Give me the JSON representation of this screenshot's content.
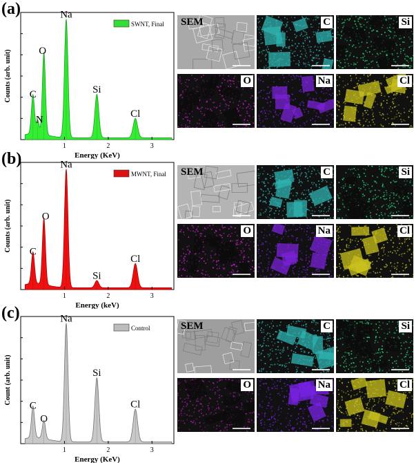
{
  "panels": [
    {
      "label": "(a)",
      "chart_data": {
        "type": "line",
        "legend": "SWNT, Final",
        "legend_color": "#33dd33",
        "fill": "#33ee33",
        "stroke": "#229922",
        "xlabel": "Energy (KeV)",
        "ylabel": "Counts (arb. unit)",
        "xlim": [
          0,
          3.5
        ],
        "ylim": [
          0,
          1.05
        ],
        "xticks": [
          "1",
          "2",
          "3"
        ],
        "peaks": [
          {
            "element": "C",
            "energy": 0.28,
            "height": 0.32,
            "width": 0.035
          },
          {
            "element": "N",
            "energy": 0.39,
            "height": 0.11,
            "width": 0.03
          },
          {
            "element": "O",
            "energy": 0.53,
            "height": 0.68,
            "width": 0.035
          },
          {
            "element": "Na",
            "energy": 1.04,
            "height": 0.98,
            "width": 0.04
          },
          {
            "element": "Si",
            "energy": 1.74,
            "height": 0.36,
            "width": 0.045
          },
          {
            "element": "Cl",
            "energy": 2.62,
            "height": 0.16,
            "width": 0.05
          }
        ],
        "labels": [
          {
            "text": "C",
            "energy": 0.28,
            "height": 0.32
          },
          {
            "text": "N",
            "energy": 0.43,
            "height": 0.11
          },
          {
            "text": "O",
            "energy": 0.5,
            "height": 0.68
          },
          {
            "text": "Na",
            "energy": 1.04,
            "height": 0.98
          },
          {
            "text": "Si",
            "energy": 1.74,
            "height": 0.36
          },
          {
            "text": "Cl",
            "energy": 2.62,
            "height": 0.16
          }
        ]
      },
      "maps": [
        {
          "label": "SEM",
          "color": "#a9a9a9"
        },
        {
          "label": "C",
          "color": "#2fb3b0"
        },
        {
          "label": "Si",
          "color": "#26d97a"
        },
        {
          "label": "O",
          "color": "#c41cc4"
        },
        {
          "label": "Na",
          "color": "#7a22d8"
        },
        {
          "label": "Cl",
          "color": "#c9c21e"
        }
      ]
    },
    {
      "label": "(b)",
      "chart_data": {
        "type": "line",
        "legend": "MWNT, Final",
        "legend_color": "#dd1111",
        "fill": "#ee1111",
        "stroke": "#aa0000",
        "xlabel": "Energy (keV)",
        "ylabel": "Counts (arb. unit)",
        "xlim": [
          0,
          3.5
        ],
        "ylim": [
          0,
          1.05
        ],
        "xticks": [
          "1",
          "2",
          "3"
        ],
        "peaks": [
          {
            "element": "C",
            "energy": 0.28,
            "height": 0.26,
            "width": 0.035
          },
          {
            "element": "O",
            "energy": 0.53,
            "height": 0.55,
            "width": 0.035
          },
          {
            "element": "Na",
            "energy": 1.04,
            "height": 0.98,
            "width": 0.04
          },
          {
            "element": "Si",
            "energy": 1.74,
            "height": 0.06,
            "width": 0.045
          },
          {
            "element": "Cl",
            "energy": 2.62,
            "height": 0.2,
            "width": 0.05
          }
        ],
        "labels": [
          {
            "text": "C",
            "energy": 0.28,
            "height": 0.26
          },
          {
            "text": "O",
            "energy": 0.57,
            "height": 0.55
          },
          {
            "text": "Na",
            "energy": 1.04,
            "height": 0.98
          },
          {
            "text": "Si",
            "energy": 1.74,
            "height": 0.06
          },
          {
            "text": "Cl",
            "energy": 2.62,
            "height": 0.2
          }
        ]
      },
      "maps": [
        {
          "label": "SEM",
          "color": "#b4b4b4"
        },
        {
          "label": "C",
          "color": "#2fb3b0"
        },
        {
          "label": "Si",
          "color": "#26d97a"
        },
        {
          "label": "O",
          "color": "#d11fd1"
        },
        {
          "label": "Na",
          "color": "#7a22d8"
        },
        {
          "label": "Cl",
          "color": "#c9c21e"
        }
      ]
    },
    {
      "label": "(c)",
      "chart_data": {
        "type": "line",
        "legend": "Control",
        "legend_color": "#bdbdbd",
        "fill": "#c8c8c8",
        "stroke": "#707070",
        "xlabel": "Energy (KeV)",
        "ylabel": "Count (arb. unit)",
        "xlim": [
          0,
          3.5
        ],
        "ylim": [
          0,
          1.05
        ],
        "xticks": [
          "1",
          "2",
          "3"
        ],
        "peaks": [
          {
            "element": "C",
            "energy": 0.28,
            "height": 0.26,
            "width": 0.035
          },
          {
            "element": "O",
            "energy": 0.53,
            "height": 0.15,
            "width": 0.035
          },
          {
            "element": "Na",
            "energy": 1.04,
            "height": 0.98,
            "width": 0.04
          },
          {
            "element": "Si",
            "energy": 1.74,
            "height": 0.53,
            "width": 0.045
          },
          {
            "element": "Cl",
            "energy": 2.62,
            "height": 0.27,
            "width": 0.05
          }
        ],
        "labels": [
          {
            "text": "C",
            "energy": 0.28,
            "height": 0.26
          },
          {
            "text": "O",
            "energy": 0.53,
            "height": 0.15
          },
          {
            "text": "Na",
            "energy": 1.04,
            "height": 0.98
          },
          {
            "text": "Si",
            "energy": 1.74,
            "height": 0.53
          },
          {
            "text": "Cl",
            "energy": 2.62,
            "height": 0.27
          }
        ]
      },
      "maps": [
        {
          "label": "SEM",
          "color": "#9e9e9e"
        },
        {
          "label": "C",
          "color": "#2fb3b0"
        },
        {
          "label": "Si",
          "color": "#26d97a"
        },
        {
          "label": "O",
          "color": "#a51aa5"
        },
        {
          "label": "Na",
          "color": "#7a22e8"
        },
        {
          "label": "Cl",
          "color": "#c9c21e"
        }
      ]
    }
  ]
}
